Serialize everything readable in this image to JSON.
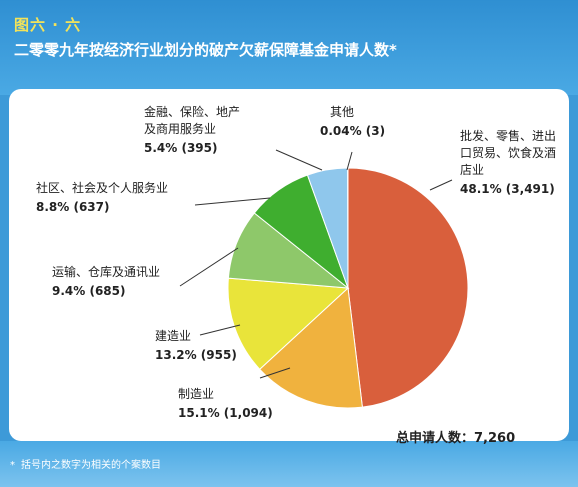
{
  "header": {
    "figure_number": "图六 · 六",
    "title": "二零零九年按经济行业划分的破产欠薪保障基金申请人数*"
  },
  "footnote": {
    "mark": "*",
    "text": "括号内之数字为相关的个案数目"
  },
  "total": {
    "label": "总申请人数：",
    "value": "7,260"
  },
  "chart_data": {
    "type": "pie",
    "title": "二零零九年按经济行业划分的破产欠薪保障基金申请人数*",
    "slices": [
      {
        "name": "批发、零售、进出口贸易、饮食及酒店业",
        "label_lines": [
          "批发、零售、进出",
          "口贸易、饮食及酒",
          "店业"
        ],
        "value": 3491,
        "percent": 48.1,
        "value_label": "48.1% (3,491)",
        "color": "#d95f3c"
      },
      {
        "name": "制造业",
        "label_lines": [
          "制造业"
        ],
        "value": 1094,
        "percent": 15.1,
        "value_label": "15.1% (1,094)",
        "color": "#f0b23e"
      },
      {
        "name": "建造业",
        "label_lines": [
          "建造业"
        ],
        "value": 955,
        "percent": 13.2,
        "value_label": "13.2% (955)",
        "color": "#e9e43a"
      },
      {
        "name": "运输、仓库及通讯业",
        "label_lines": [
          "运输、仓库及通讯业"
        ],
        "value": 685,
        "percent": 9.4,
        "value_label": "9.4% (685)",
        "color": "#8ec86a"
      },
      {
        "name": "社区、社会及个人服务业",
        "label_lines": [
          "社区、社会及个人服务业"
        ],
        "value": 637,
        "percent": 8.8,
        "value_label": "8.8% (637)",
        "color": "#3fae2f"
      },
      {
        "name": "金融、保险、地产及商用服务业",
        "label_lines": [
          "金融、保险、地产",
          "及商用服务业"
        ],
        "value": 395,
        "percent": 5.4,
        "value_label": "5.4% (395)",
        "color": "#8fc7ec"
      },
      {
        "name": "其他",
        "label_lines": [
          "其他"
        ],
        "value": 3,
        "percent": 0.04,
        "value_label": "0.04% (3)",
        "color": "#4a7fc4"
      }
    ]
  }
}
